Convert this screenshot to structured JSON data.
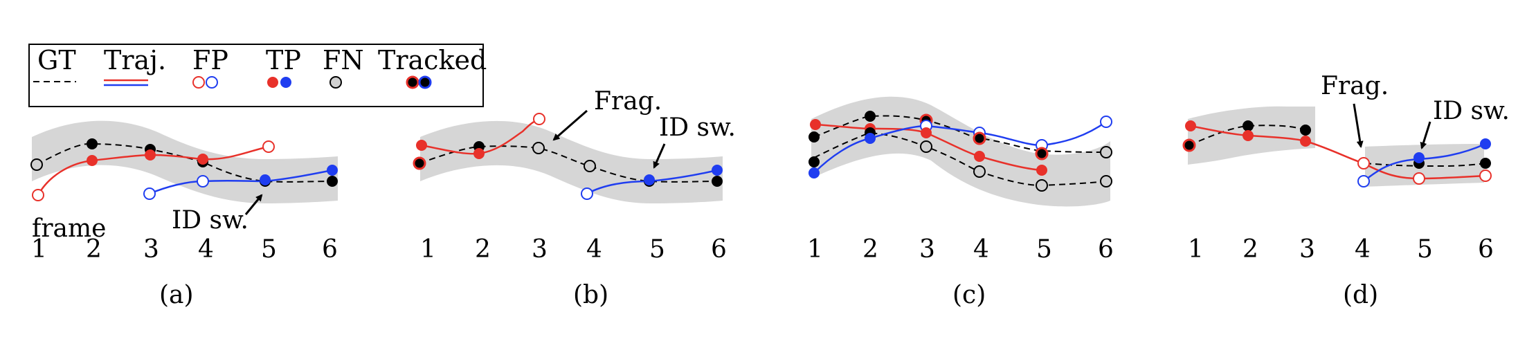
{
  "legend": {
    "gt": "GT",
    "traj": "Traj.",
    "fp": "FP",
    "tp": "TP",
    "fn": "FN",
    "tracked": "Tracked"
  },
  "colors": {
    "red": "#e8312a",
    "blue": "#1f3df0",
    "band": "#d6d6d6",
    "black": "#000000",
    "fn_fill": "#d0d0d0"
  },
  "panels": [
    {
      "caption": "(a)",
      "frames": [
        "1",
        "2",
        "3",
        "4",
        "5",
        "6"
      ],
      "extra_label": "frame",
      "annotations": [
        {
          "text": "ID sw."
        }
      ]
    },
    {
      "caption": "(b)",
      "frames": [
        "1",
        "2",
        "3",
        "4",
        "5",
        "6"
      ],
      "annotations": [
        {
          "text": "Frag."
        },
        {
          "text": "ID sw."
        }
      ]
    },
    {
      "caption": "(c)",
      "frames": [
        "1",
        "2",
        "3",
        "4",
        "5",
        "6"
      ],
      "annotations": []
    },
    {
      "caption": "(d)",
      "frames": [
        "1",
        "2",
        "3",
        "4",
        "5",
        "6"
      ],
      "annotations": [
        {
          "text": "Frag."
        },
        {
          "text": "ID sw."
        }
      ]
    }
  ]
}
